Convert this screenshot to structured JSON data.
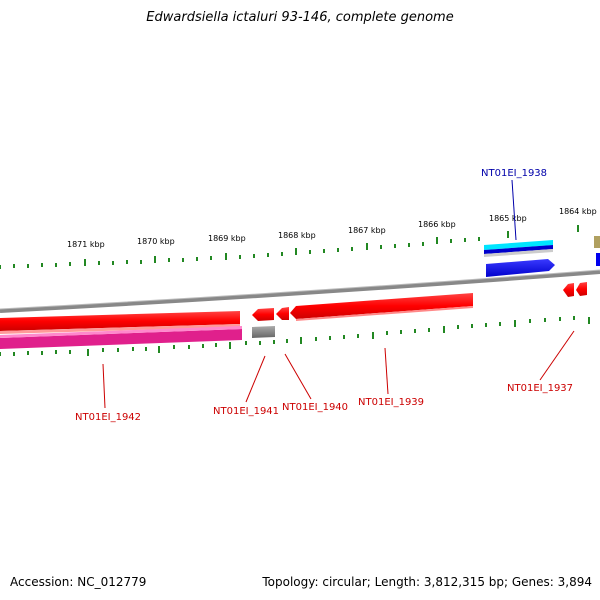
{
  "title": "Edwardsiella ictaluri 93-146, complete genome",
  "footer": {
    "accession": "Accession: NC_012779",
    "summary": "Topology: circular; Length: 3,812,315 bp; Genes: 3,894"
  },
  "ticks": [
    "1871 kbp",
    "1870 kbp",
    "1869 kbp",
    "1868 kbp",
    "1867 kbp",
    "1866 kbp",
    "1865 kbp",
    "1864 kbp"
  ],
  "genes": [
    {
      "label": "NT01EI_1938",
      "color": "#0000aa"
    },
    {
      "label": "NT01EI_1937",
      "color": "#cc0000"
    },
    {
      "label": "NT01EI_1939",
      "color": "#cc0000"
    },
    {
      "label": "NT01EI_1940",
      "color": "#cc0000"
    },
    {
      "label": "NT01EI_1941",
      "color": "#cc0000"
    },
    {
      "label": "NT01EI_1942",
      "color": "#cc0000"
    }
  ],
  "colors": {
    "backbone": "#888888",
    "forward_gene": "#ff0000",
    "reverse_gene": "#0000ee",
    "cyan_feature": "#00e5ff",
    "pink_feature": "#e0208c",
    "gray_feature": "#666666",
    "tan_feature": "#b0a060",
    "tick": "#228822"
  }
}
